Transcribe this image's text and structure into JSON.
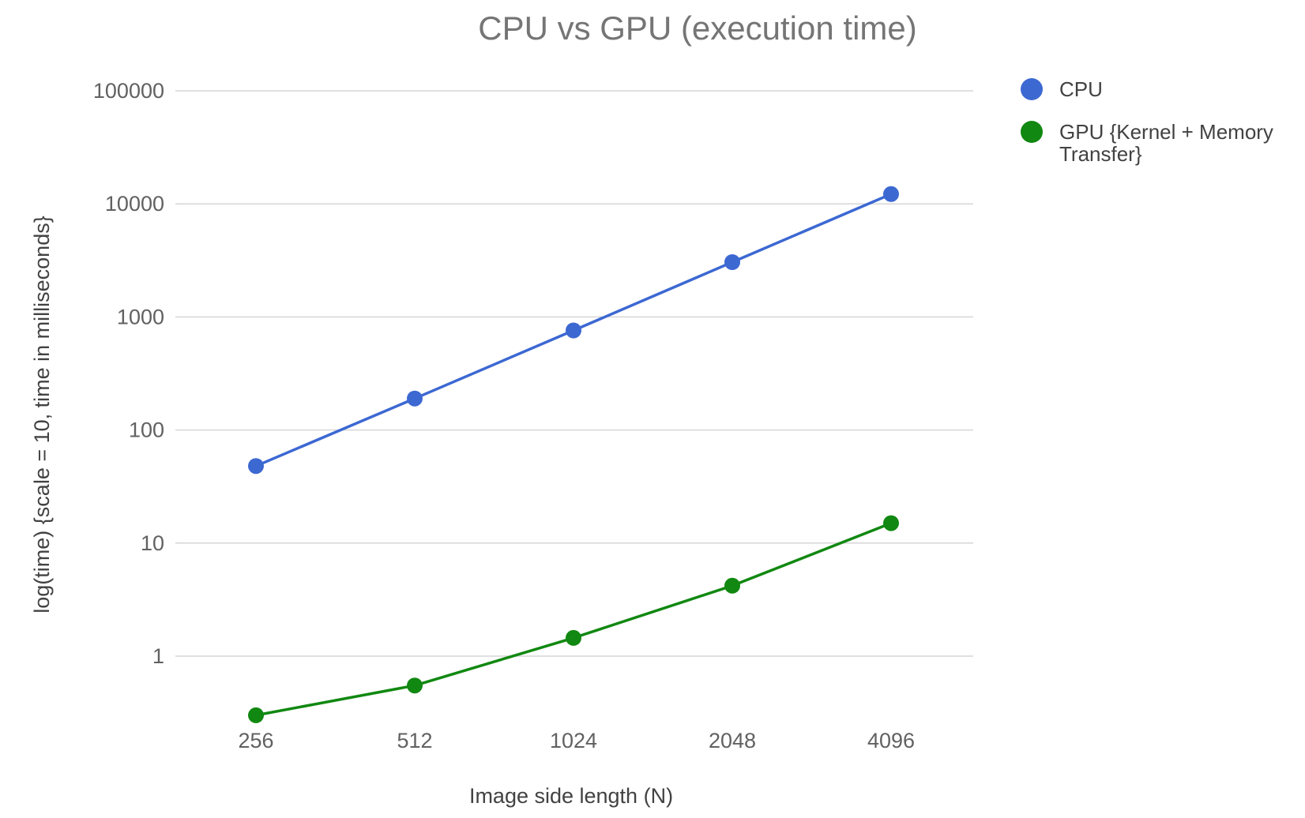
{
  "chart_data": {
    "type": "line",
    "title": "CPU vs GPU (execution time)",
    "xlabel": "Image side length (N)",
    "ylabel": "log(time) {scale = 10, time in milliseconds}",
    "categories": [
      "256",
      "512",
      "1024",
      "2048",
      "4096"
    ],
    "y_scale": "log",
    "ylim": [
      0.28,
      100000
    ],
    "y_ticks": [
      1,
      10,
      100,
      1000,
      10000,
      100000
    ],
    "y_tick_labels": [
      "1",
      "10",
      "100",
      "1000",
      "10000",
      "100000"
    ],
    "grid": true,
    "legend_position": "right",
    "series": [
      {
        "name": "CPU",
        "color": "#3c68d2",
        "values": [
          48,
          190,
          760,
          3050,
          12200
        ]
      },
      {
        "name": "GPU {Kernel + Memory Transfer}",
        "legend_lines": [
          "GPU {Kernel + Memory",
          "Transfer}"
        ],
        "color": "#118811",
        "values": [
          0.3,
          0.55,
          1.45,
          4.2,
          15
        ]
      }
    ]
  }
}
